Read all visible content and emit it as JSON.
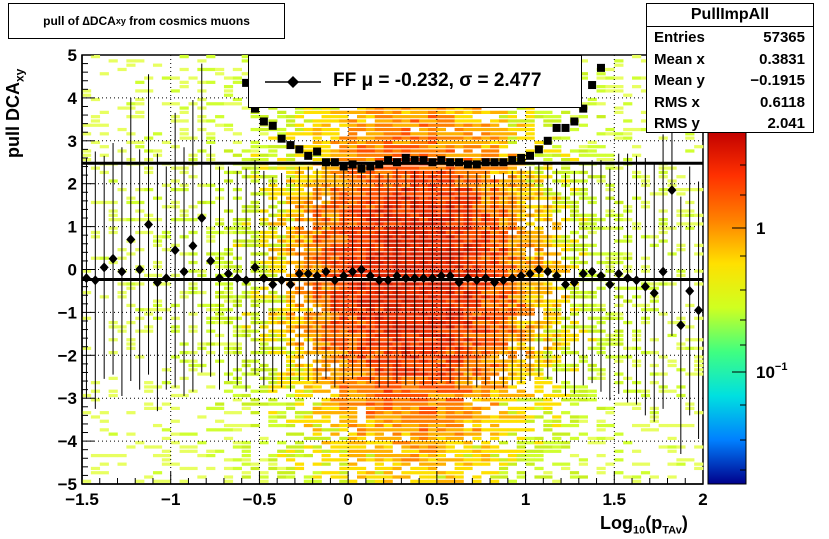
{
  "title": {
    "prefix": "pull of ",
    "delta": "∆",
    "dca": " DCA",
    "sub": "xy",
    "suffix": " from cosmics muons"
  },
  "stats": {
    "name": "PullImpAll",
    "rows": [
      {
        "label": "Entries",
        "value": "57365"
      },
      {
        "label": "Mean x",
        "value": "0.3831"
      },
      {
        "label": "Mean y",
        "value": "−0.1915"
      },
      {
        "label": "RMS x",
        "value": "0.6118"
      },
      {
        "label": "RMS y",
        "value": "2.041"
      }
    ]
  },
  "legend": {
    "text": "FF μ = -0.232, σ =   2.477"
  },
  "axes": {
    "ylabel_main": "pull DCA",
    "ylabel_sub": "xy",
    "xlabel_main": "Log",
    "xlabel_sub1": "10",
    "xlabel_mid": "(p",
    "xlabel_sub2": "TAv",
    "xlabel_end": ")"
  },
  "chart_data": {
    "type": "heatmap",
    "xlim": [
      -1.5,
      2
    ],
    "ylim": [
      -5,
      5
    ],
    "x_ticks": [
      "−1.5",
      "−1",
      "−0.5",
      "0",
      "0.5",
      "1",
      "1.5",
      "2"
    ],
    "y_ticks": [
      "−5",
      "−4",
      "−3",
      "−2",
      "−1",
      "0",
      "1",
      "2",
      "3",
      "4",
      "5"
    ],
    "colorbar": {
      "scale": "log",
      "ticks": [
        "1",
        "10^-1"
      ],
      "colors": [
        "#00008b",
        "#0080ff",
        "#00e0e0",
        "#40ff80",
        "#d0ff20",
        "#ffe000",
        "#ff8000",
        "#ff3000",
        "#c00000"
      ]
    },
    "grid": true,
    "mean_line": -0.232,
    "sigma_line": 2.477,
    "series": [
      {
        "name": "",
        "marker": "diamond",
        "x": [
          -1.475,
          -1.425,
          -1.375,
          -1.325,
          -1.275,
          -1.225,
          -1.175,
          -1.125,
          -1.075,
          -1.025,
          -0.975,
          -0.925,
          -0.875,
          -0.825,
          -0.775,
          -0.725,
          -0.675,
          -0.625,
          -0.575,
          -0.525,
          -0.475,
          -0.425,
          -0.375,
          -0.325,
          -0.275,
          -0.225,
          -0.175,
          -0.125,
          -0.075,
          -0.025,
          0.025,
          0.075,
          0.125,
          0.175,
          0.225,
          0.275,
          0.325,
          0.375,
          0.425,
          0.475,
          0.525,
          0.575,
          0.625,
          0.675,
          0.725,
          0.775,
          0.825,
          0.875,
          0.925,
          0.975,
          1.025,
          1.075,
          1.125,
          1.175,
          1.225,
          1.275,
          1.325,
          1.375,
          1.425,
          1.475,
          1.525,
          1.575,
          1.625,
          1.675,
          1.725,
          1.775,
          1.825,
          1.875,
          1.925,
          1.975
        ],
        "y": [
          -0.2,
          -0.25,
          0.05,
          0.25,
          -0.05,
          0.7,
          0.0,
          1.05,
          -0.3,
          -0.2,
          0.45,
          -0.05,
          0.55,
          1.2,
          0.2,
          -0.2,
          -0.1,
          -0.2,
          -0.25,
          0.05,
          -0.2,
          -0.35,
          -0.25,
          -0.35,
          -0.1,
          -0.1,
          -0.15,
          -0.05,
          -0.25,
          -0.15,
          -0.05,
          0.0,
          -0.15,
          -0.25,
          -0.25,
          -0.15,
          -0.2,
          -0.2,
          -0.2,
          -0.2,
          -0.15,
          -0.15,
          -0.3,
          -0.2,
          -0.25,
          -0.2,
          -0.3,
          -0.25,
          -0.2,
          -0.15,
          -0.1,
          0.0,
          -0.05,
          -0.15,
          -0.35,
          -0.3,
          -0.1,
          -0.05,
          -0.15,
          -0.35,
          -0.1,
          -0.2,
          -0.25,
          -0.4,
          -0.55,
          -0.05,
          1.85,
          -1.3,
          -0.5,
          -0.95
        ],
        "yerr": [
          2.8,
          3.0,
          2.6,
          2.7,
          2.9,
          3.3,
          2.8,
          3.5,
          3.0,
          2.6,
          3.2,
          2.9,
          3.4,
          3.6,
          2.7,
          2.6,
          2.5,
          2.5,
          2.6,
          2.5,
          2.5,
          2.5,
          2.5,
          2.5,
          2.5,
          2.5,
          2.5,
          2.5,
          2.5,
          2.5,
          2.5,
          2.5,
          2.5,
          2.5,
          2.5,
          2.5,
          2.5,
          2.5,
          2.5,
          2.5,
          2.5,
          2.5,
          2.5,
          2.5,
          2.5,
          2.5,
          2.5,
          2.5,
          2.5,
          2.5,
          2.5,
          2.5,
          2.5,
          2.5,
          2.6,
          2.6,
          2.6,
          2.6,
          2.7,
          2.7,
          2.8,
          2.9,
          2.9,
          3.0,
          3.0,
          3.2,
          3.4,
          3.0,
          2.9,
          3.0
        ]
      },
      {
        "name": "",
        "marker": "square",
        "x": [
          -0.575,
          -0.525,
          -0.475,
          -0.425,
          -0.375,
          -0.325,
          -0.275,
          -0.225,
          -0.175,
          -0.125,
          -0.075,
          -0.025,
          0.025,
          0.075,
          0.125,
          0.175,
          0.225,
          0.275,
          0.325,
          0.375,
          0.425,
          0.475,
          0.525,
          0.575,
          0.625,
          0.675,
          0.725,
          0.775,
          0.825,
          0.875,
          0.925,
          0.975,
          1.025,
          1.075,
          1.125,
          1.175,
          1.225,
          1.275,
          1.325,
          1.375,
          1.425
        ],
        "y": [
          4.35,
          3.75,
          3.45,
          3.35,
          3.05,
          2.9,
          2.8,
          2.65,
          2.75,
          2.5,
          2.5,
          2.4,
          2.45,
          2.35,
          2.4,
          2.45,
          2.55,
          2.5,
          2.6,
          2.55,
          2.55,
          2.5,
          2.55,
          2.5,
          2.5,
          2.45,
          2.45,
          2.5,
          2.5,
          2.5,
          2.55,
          2.6,
          2.65,
          2.8,
          3.0,
          3.3,
          3.3,
          3.45,
          3.75,
          4.3,
          4.7
        ]
      }
    ]
  }
}
